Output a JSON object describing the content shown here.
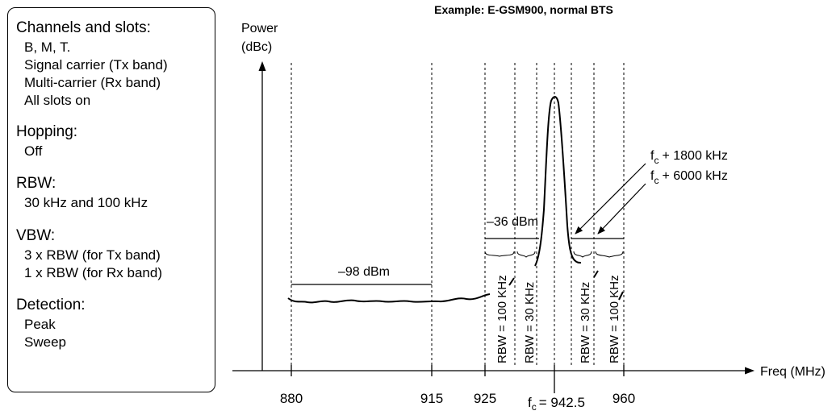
{
  "settings_panel": {
    "sections": [
      {
        "heading": "Channels and slots:",
        "lines": [
          "B, M, T.",
          "Signal carrier (Tx band)",
          "Multi-carrier (Rx band)",
          "All slots on"
        ]
      },
      {
        "heading": "Hopping:",
        "lines": [
          "Off"
        ]
      },
      {
        "heading": "RBW:",
        "lines": [
          "30 kHz and 100 kHz"
        ]
      },
      {
        "heading": "VBW:",
        "lines": [
          "3 x RBW (for Tx band)",
          "1 x RBW (for Rx band)"
        ]
      },
      {
        "heading": "Detection:",
        "lines": [
          "Peak",
          "Sweep"
        ]
      }
    ]
  },
  "diagram": {
    "title": "Example: E-GSM900, normal BTS",
    "y_axis_label_line1": "Power",
    "y_axis_label_line2": "(dBc)",
    "x_axis_label": "Freq (MHz)",
    "x_ticks": [
      "880",
      "915",
      "925",
      "960"
    ],
    "fc_label": "= 942.5",
    "fc_symbol": "f",
    "fc_subscript": "c",
    "levels": {
      "rx_band": "–98 dBm",
      "tx_band": "–36 dBm"
    },
    "rbw_labels": {
      "rbw_100_left": "RBW = 100 KHz",
      "rbw_30_left": "RBW = 30 KHz",
      "rbw_30_right": "RBW = 30 KHz",
      "rbw_100_right": "RBW = 100 KHz"
    },
    "offset_annotations": {
      "offset_1800": "+ 1800 kHz",
      "offset_6000": "+ 6000 kHz"
    }
  }
}
